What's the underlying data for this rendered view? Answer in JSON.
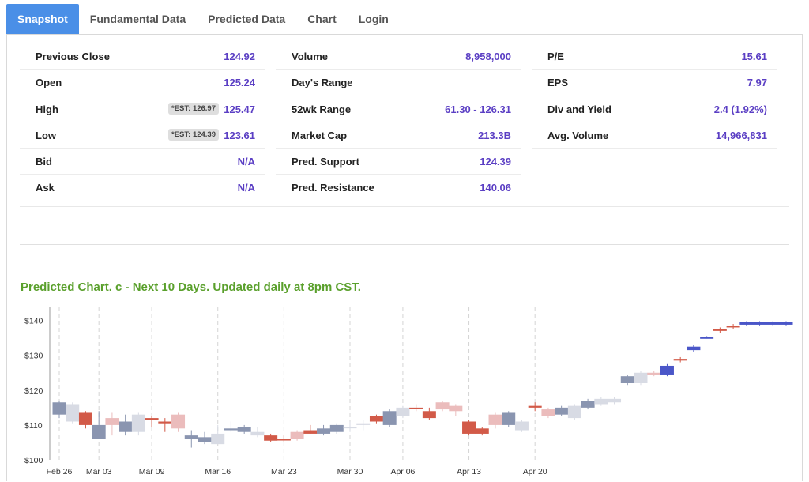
{
  "tabs": [
    {
      "label": "Snapshot",
      "active": true
    },
    {
      "label": "Fundamental Data",
      "active": false
    },
    {
      "label": "Predicted Data",
      "active": false
    },
    {
      "label": "Chart",
      "active": false
    },
    {
      "label": "Login",
      "active": false
    }
  ],
  "stats": {
    "col1": [
      {
        "label": "Previous Close",
        "value": "124.92"
      },
      {
        "label": "Open",
        "value": "125.24"
      },
      {
        "label": "High",
        "value": "125.47",
        "est": "*EST: 126.97"
      },
      {
        "label": "Low",
        "value": "123.61",
        "est": "*EST: 124.39"
      },
      {
        "label": "Bid",
        "value": "N/A"
      },
      {
        "label": "Ask",
        "value": "N/A"
      }
    ],
    "col2": [
      {
        "label": "Volume",
        "value": "8,958,000"
      },
      {
        "label": "Day's Range",
        "value": ""
      },
      {
        "label": "52wk Range",
        "value": "61.30 - 126.31"
      },
      {
        "label": "Market Cap",
        "value": "213.3B"
      },
      {
        "label": "Pred. Support",
        "value": "124.39"
      },
      {
        "label": "Pred. Resistance",
        "value": "140.06"
      }
    ],
    "col3": [
      {
        "label": "P/E",
        "value": "15.61"
      },
      {
        "label": "EPS",
        "value": "7.97"
      },
      {
        "label": "Div and Yield",
        "value": "2.4 (1.92%)"
      },
      {
        "label": "Avg. Volume",
        "value": "14,966,831"
      }
    ]
  },
  "prediction": {
    "title": "Predicted Chart. c - Next 10 Days. Updated daily at 8pm CST."
  },
  "colors": {
    "accent_tab": "#4a8fe7",
    "value_text": "#5b3fc4",
    "pred_title": "#5aa02c",
    "up_dark": "#8a95b0",
    "up_light": "#d8dbe4",
    "down_dark": "#d25a48",
    "down_light": "#ebbcbc",
    "predicted": "#4a56c8"
  },
  "chart_data": {
    "type": "candlestick",
    "y_ticks": [
      "$100",
      "$110",
      "$120",
      "$130",
      "$140"
    ],
    "ylim": [
      100,
      144
    ],
    "x_ticks": [
      "Feb 26",
      "Mar 03",
      "Mar 09",
      "Mar 16",
      "Mar 23",
      "Mar 30",
      "Apr 06",
      "Apr 13",
      "Apr 20"
    ],
    "x_tick_index": [
      0,
      3,
      7,
      12,
      17,
      22,
      26,
      31,
      36
    ],
    "grid": "vertical dashed",
    "candles": [
      {
        "o": 113.0,
        "c": 116.5,
        "h": 117.0,
        "l": 112.0,
        "style": "up_dark"
      },
      {
        "o": 116.0,
        "c": 111.0,
        "h": 116.5,
        "l": 110.5,
        "style": "up_light"
      },
      {
        "o": 113.5,
        "c": 110.0,
        "h": 114.0,
        "l": 109.0,
        "style": "down_dark"
      },
      {
        "o": 110.0,
        "c": 106.0,
        "h": 114.0,
        "l": 106.0,
        "style": "up_dark"
      },
      {
        "o": 112.0,
        "c": 110.0,
        "h": 113.5,
        "l": 107.0,
        "style": "down_light"
      },
      {
        "o": 111.0,
        "c": 108.0,
        "h": 113.0,
        "l": 107.0,
        "style": "up_dark"
      },
      {
        "o": 113.0,
        "c": 108.0,
        "h": 113.5,
        "l": 107.0,
        "style": "up_light"
      },
      {
        "o": 112.0,
        "c": 111.5,
        "h": 112.5,
        "l": 109.5,
        "style": "down_dark"
      },
      {
        "o": 111.0,
        "c": 110.5,
        "h": 112.0,
        "l": 108.0,
        "style": "down_dark"
      },
      {
        "o": 113.0,
        "c": 109.0,
        "h": 113.5,
        "l": 108.0,
        "style": "down_light"
      },
      {
        "o": 106.0,
        "c": 107.0,
        "h": 108.5,
        "l": 103.5,
        "style": "up_dark"
      },
      {
        "o": 105.0,
        "c": 106.5,
        "h": 108.0,
        "l": 104.5,
        "style": "up_dark"
      },
      {
        "o": 104.5,
        "c": 107.5,
        "h": 110.0,
        "l": 104.5,
        "style": "up_light"
      },
      {
        "o": 108.5,
        "c": 109.0,
        "h": 111.0,
        "l": 108.0,
        "style": "up_dark"
      },
      {
        "o": 108.0,
        "c": 109.5,
        "h": 110.0,
        "l": 107.5,
        "style": "up_dark"
      },
      {
        "o": 107.0,
        "c": 108.0,
        "h": 109.5,
        "l": 106.5,
        "style": "up_light"
      },
      {
        "o": 107.0,
        "c": 105.5,
        "h": 107.5,
        "l": 105.0,
        "style": "down_dark"
      },
      {
        "o": 106.0,
        "c": 106.0,
        "h": 107.0,
        "l": 105.0,
        "style": "down_dark"
      },
      {
        "o": 108.0,
        "c": 106.0,
        "h": 108.5,
        "l": 105.5,
        "style": "down_light"
      },
      {
        "o": 108.5,
        "c": 107.5,
        "h": 110.0,
        "l": 107.5,
        "style": "down_dark"
      },
      {
        "o": 107.5,
        "c": 109.0,
        "h": 110.0,
        "l": 107.0,
        "style": "up_dark"
      },
      {
        "o": 108.0,
        "c": 110.0,
        "h": 110.5,
        "l": 107.5,
        "style": "up_dark"
      },
      {
        "o": 109.5,
        "c": 109.5,
        "h": 111.0,
        "l": 108.0,
        "style": "up_light"
      },
      {
        "o": 110.0,
        "c": 110.5,
        "h": 111.5,
        "l": 108.5,
        "style": "up_light"
      },
      {
        "o": 111.0,
        "c": 112.5,
        "h": 113.0,
        "l": 110.5,
        "style": "down_dark"
      },
      {
        "o": 110.0,
        "c": 114.0,
        "h": 114.5,
        "l": 109.5,
        "style": "up_dark"
      },
      {
        "o": 112.5,
        "c": 115.0,
        "h": 115.5,
        "l": 112.0,
        "style": "up_light"
      },
      {
        "o": 115.0,
        "c": 115.0,
        "h": 116.0,
        "l": 114.0,
        "style": "down_dark"
      },
      {
        "o": 114.0,
        "c": 112.0,
        "h": 115.0,
        "l": 111.5,
        "style": "down_dark"
      },
      {
        "o": 116.5,
        "c": 114.5,
        "h": 117.0,
        "l": 114.0,
        "style": "down_light"
      },
      {
        "o": 115.5,
        "c": 114.0,
        "h": 116.0,
        "l": 112.5,
        "style": "down_light"
      },
      {
        "o": 111.0,
        "c": 107.5,
        "h": 111.5,
        "l": 107.0,
        "style": "down_dark"
      },
      {
        "o": 109.0,
        "c": 107.5,
        "h": 109.5,
        "l": 107.0,
        "style": "down_dark"
      },
      {
        "o": 113.0,
        "c": 110.0,
        "h": 113.5,
        "l": 109.0,
        "style": "down_light"
      },
      {
        "o": 110.0,
        "c": 113.5,
        "h": 114.0,
        "l": 109.5,
        "style": "up_dark"
      },
      {
        "o": 108.5,
        "c": 111.0,
        "h": 111.5,
        "l": 108.0,
        "style": "up_light"
      },
      {
        "o": 115.0,
        "c": 115.5,
        "h": 116.5,
        "l": 114.0,
        "style": "down_dark"
      },
      {
        "o": 112.5,
        "c": 114.5,
        "h": 115.0,
        "l": 112.0,
        "style": "down_light"
      },
      {
        "o": 113.0,
        "c": 115.0,
        "h": 115.5,
        "l": 112.5,
        "style": "up_dark"
      },
      {
        "o": 112.0,
        "c": 115.5,
        "h": 116.0,
        "l": 111.5,
        "style": "up_light"
      },
      {
        "o": 115.0,
        "c": 117.0,
        "h": 117.5,
        "l": 114.5,
        "style": "up_dark"
      },
      {
        "o": 116.0,
        "c": 117.5,
        "h": 118.0,
        "l": 115.5,
        "style": "up_light"
      },
      {
        "o": 116.5,
        "c": 117.5,
        "h": 118.0,
        "l": 116.0,
        "style": "up_light"
      },
      {
        "o": 122.0,
        "c": 124.0,
        "h": 124.5,
        "l": 121.5,
        "style": "up_dark"
      },
      {
        "o": 122.0,
        "c": 125.0,
        "h": 125.5,
        "l": 121.5,
        "style": "up_light"
      },
      {
        "o": 124.5,
        "c": 125.0,
        "h": 125.5,
        "l": 124.0,
        "style": "down_light"
      },
      {
        "o": 124.5,
        "c": 127.0,
        "h": 127.5,
        "l": 124.0,
        "style": "predicted"
      },
      {
        "o": 128.5,
        "c": 129.0,
        "h": 129.5,
        "l": 128.0,
        "style": "down_dark"
      },
      {
        "o": 131.5,
        "c": 132.5,
        "h": 133.0,
        "l": 131.0,
        "style": "predicted"
      },
      {
        "o": 135.0,
        "c": 135.2,
        "h": 135.5,
        "l": 134.8,
        "style": "predicted"
      },
      {
        "o": 137.0,
        "c": 137.5,
        "h": 138.0,
        "l": 136.5,
        "style": "down_dark"
      },
      {
        "o": 138.0,
        "c": 138.5,
        "h": 139.0,
        "l": 137.5,
        "style": "down_dark"
      },
      {
        "o": 138.8,
        "c": 139.6,
        "h": 139.8,
        "l": 138.6,
        "style": "predicted"
      },
      {
        "o": 138.8,
        "c": 139.6,
        "h": 139.8,
        "l": 138.6,
        "style": "predicted"
      },
      {
        "o": 138.8,
        "c": 139.6,
        "h": 139.8,
        "l": 138.6,
        "style": "predicted"
      },
      {
        "o": 138.8,
        "c": 139.6,
        "h": 139.8,
        "l": 138.6,
        "style": "predicted"
      }
    ]
  }
}
